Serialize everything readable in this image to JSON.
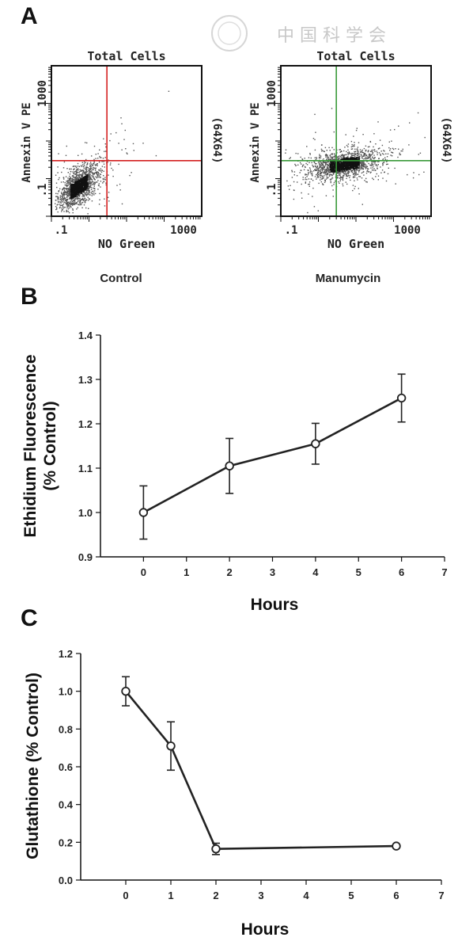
{
  "watermark": "中 国 科 学 会",
  "panels": {
    "a": "A",
    "b": "B",
    "c": "C"
  },
  "chart_data": [
    {
      "type": "scatter",
      "panel": "A",
      "title": "Total Cells",
      "xlabel": "NO Green",
      "ylabel": "Annexin V PE",
      "side_label": "(64X64)",
      "x_ticks": [
        ".1",
        "1000"
      ],
      "y_ticks": [
        "1000",
        ".1"
      ],
      "condition": "Control",
      "scale": "log",
      "quadrant_color": "#d42020",
      "gate": {
        "x": 3,
        "y": 3
      }
    },
    {
      "type": "scatter",
      "panel": "A",
      "title": "Total Cells",
      "xlabel": "NO Green",
      "ylabel": "Annexin V PE",
      "side_label": "(64X64)",
      "x_ticks": [
        ".1",
        "1000"
      ],
      "y_ticks": [
        "1000",
        ".1"
      ],
      "condition": "Manumycin",
      "scale": "log",
      "quadrant_color": "#3a9a3a",
      "gate": {
        "x": 3,
        "y": 3
      }
    },
    {
      "type": "line",
      "panel": "B",
      "xlabel": "Hours",
      "ylabel": "Ethidium Fluorescence (% Control)",
      "ylabel_lines": [
        "Ethidium Fluorescence",
        "(% Control)"
      ],
      "x_ticks": [
        "0",
        "1",
        "2",
        "3",
        "4",
        "5",
        "6",
        "7"
      ],
      "y_ticks": [
        "0.9",
        "1.0",
        "1.1",
        "1.2",
        "1.3",
        "1.4"
      ],
      "xlim": [
        -1,
        7
      ],
      "ylim": [
        0.9,
        1.4
      ],
      "x": [
        0,
        2,
        4,
        6
      ],
      "y": [
        1.0,
        1.105,
        1.155,
        1.258
      ],
      "error": [
        0.06,
        0.062,
        0.046,
        0.054
      ]
    },
    {
      "type": "line",
      "panel": "C",
      "xlabel": "Hours",
      "ylabel": "Glutathione (% Control)",
      "ylabel_lines": [
        "Glutathione (% Control)"
      ],
      "x_ticks": [
        "0",
        "1",
        "2",
        "3",
        "4",
        "5",
        "6",
        "7"
      ],
      "y_ticks": [
        "0.0",
        "0.2",
        "0.4",
        "0.6",
        "0.8",
        "1.0",
        "1.2"
      ],
      "xlim": [
        -1,
        7
      ],
      "ylim": [
        0,
        1.2
      ],
      "x": [
        0,
        1,
        2,
        6
      ],
      "y": [
        1.0,
        0.71,
        0.165,
        0.18
      ],
      "error": [
        0.077,
        0.128,
        0.03,
        0.0
      ]
    }
  ]
}
